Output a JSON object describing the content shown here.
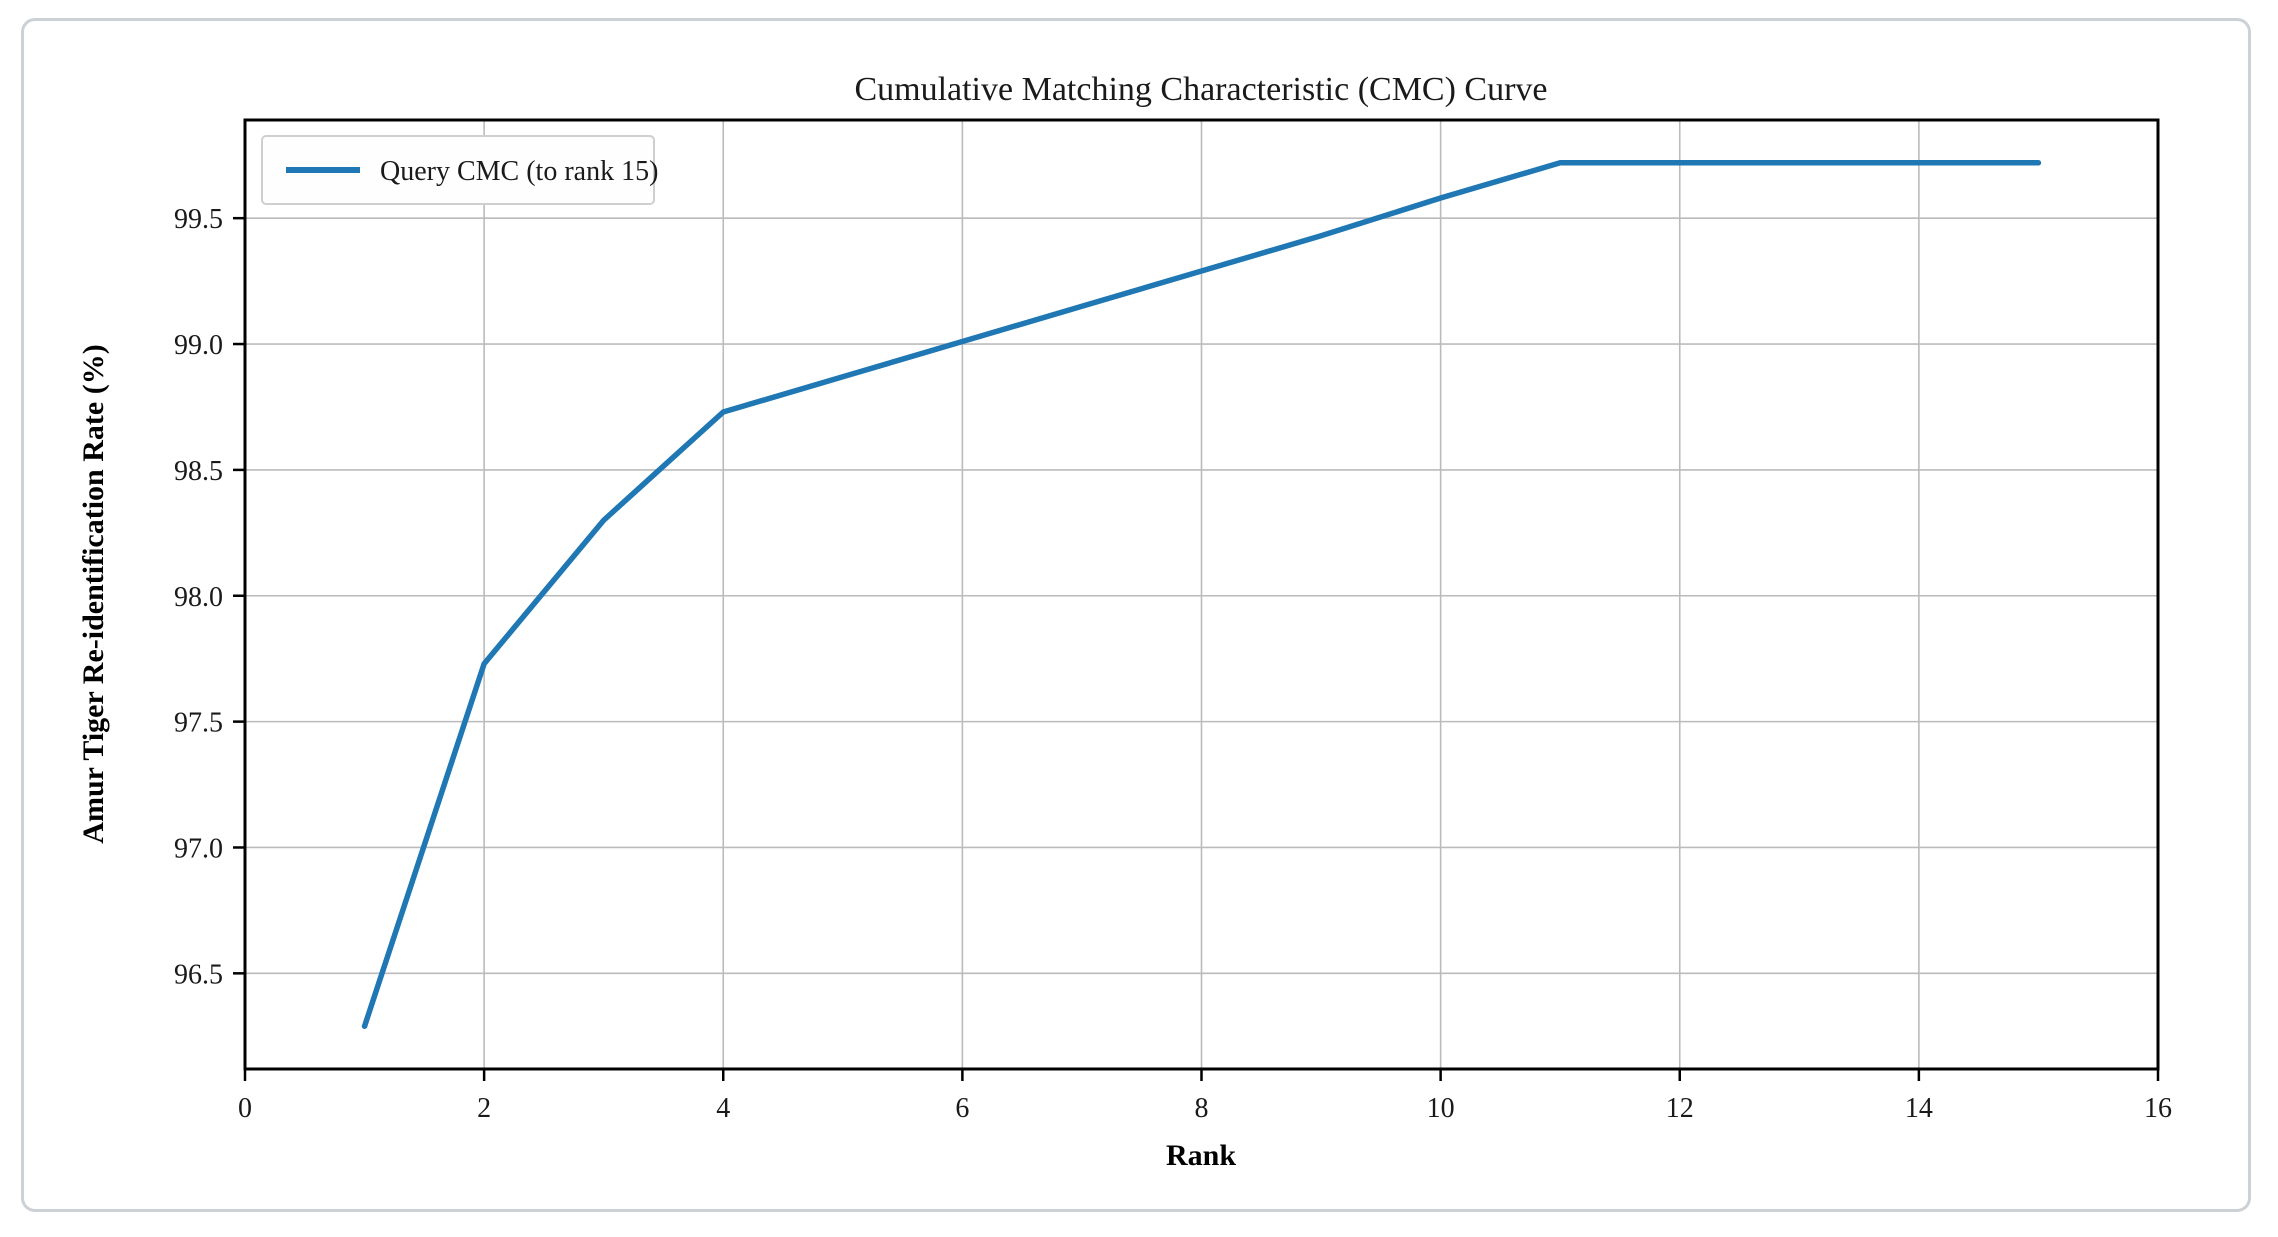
{
  "chart_data": {
    "type": "line",
    "title": "Cumulative Matching Characteristic (CMC) Curve",
    "xlabel": "Rank",
    "ylabel": "Amur Tiger Re-identification Rate (%)",
    "legend": {
      "position": "top-left",
      "entries": [
        {
          "label": "Query CMC (to rank 15)",
          "color": "#1f77b4"
        }
      ]
    },
    "series": [
      {
        "name": "Query CMC (to rank 15)",
        "color": "#1f77b4",
        "x": [
          1,
          2,
          3,
          4,
          5,
          6,
          7,
          8,
          9,
          10,
          11,
          12,
          13,
          14,
          15
        ],
        "values": [
          96.29,
          97.73,
          98.3,
          98.73,
          98.87,
          99.01,
          99.15,
          99.29,
          99.43,
          99.58,
          99.72,
          99.72,
          99.72,
          99.72,
          99.72
        ]
      }
    ],
    "xlim": [
      0,
      16
    ],
    "ylim": [
      96.12,
      99.89
    ],
    "xticks": [
      0,
      2,
      4,
      6,
      8,
      10,
      12,
      14,
      16
    ],
    "xtick_labels": [
      "0",
      "2",
      "4",
      "6",
      "8",
      "10",
      "12",
      "14",
      "16"
    ],
    "yticks": [
      96.5,
      97.0,
      97.5,
      98.0,
      98.5,
      99.0,
      99.5
    ],
    "ytick_labels": [
      "96.5",
      "97.0",
      "97.5",
      "98.0",
      "98.5",
      "99.0",
      "99.5"
    ],
    "grid": true,
    "colors": {
      "line": "#1f77b4",
      "grid": "#bbbbbb",
      "spine": "#000000",
      "background": "#ffffff",
      "frame_border": "#ccd1d6"
    }
  }
}
